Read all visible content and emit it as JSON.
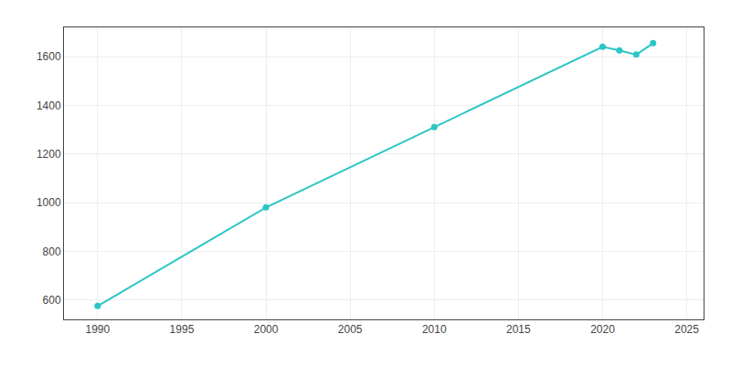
{
  "chart_data": {
    "type": "line",
    "x": [
      1990,
      2000,
      2010,
      2020,
      2021,
      2022,
      2023
    ],
    "values": [
      575,
      980,
      1310,
      1640,
      1625,
      1608,
      1655
    ],
    "color": "#2dc5c5",
    "marker": "circle",
    "xlim": [
      1988,
      2026
    ],
    "ylim": [
      520,
      1720
    ],
    "xticks": [
      1990,
      1995,
      2000,
      2005,
      2010,
      2015,
      2020,
      2025
    ],
    "yticks": [
      600,
      800,
      1000,
      1200,
      1400,
      1600
    ],
    "grid": true
  }
}
